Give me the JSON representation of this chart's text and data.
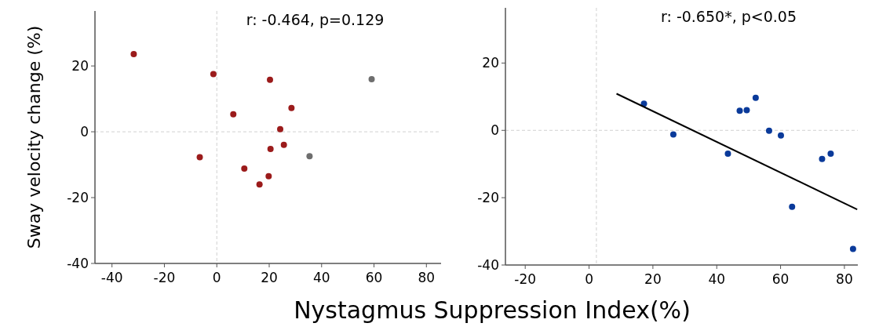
{
  "chart_data": [
    {
      "type": "scatter",
      "title": "r: -0.464, p=0.129",
      "ylabel": "Sway velocity change (%)",
      "xlabel": "Nystagmus Suppression Index(%)",
      "xlim": [
        -46.5,
        85.6
      ],
      "xticks": [
        -40,
        -20,
        0,
        20,
        40,
        60,
        80
      ],
      "ylim": [
        -40,
        36.7
      ],
      "yticks": [
        -40,
        -20,
        0,
        20
      ],
      "grid": false,
      "marker": "circle",
      "ref_lines": [
        {
          "axis": "x",
          "value": 0,
          "color": "#d0d0d0",
          "line_style": "dashed"
        },
        {
          "axis": "y",
          "value": 0,
          "color": "#d0d0d0",
          "line_style": "dashed"
        }
      ],
      "series": [
        {
          "color": "#9b1b1b",
          "x": [
            -31.7,
            -1.3,
            20.3,
            6.3,
            28.5,
            24.2,
            25.6,
            20.5,
            -6.5,
            10.5,
            19.8,
            16.3
          ],
          "values": [
            23.6,
            17.5,
            15.8,
            5.3,
            7.2,
            0.8,
            -4.0,
            -5.2,
            -7.7,
            -11.2,
            -13.5,
            -16.0
          ]
        },
        {
          "color": "#6e6e6e",
          "x": [
            59.1,
            35.4
          ],
          "values": [
            16.0,
            -7.4
          ]
        }
      ]
    },
    {
      "type": "scatter",
      "title": "r: -0.650*, p<0.05",
      "xlim": [
        -26.2,
        84.2
      ],
      "xticks": [
        -20,
        0,
        20,
        40,
        60,
        80
      ],
      "ylim": [
        -40,
        36.4
      ],
      "yticks": [
        -40,
        -20,
        0,
        20
      ],
      "grid": false,
      "marker": "circle",
      "ref_lines": [
        {
          "axis": "x",
          "value": 2.3,
          "color": "#d0d0d0",
          "line_style": "dashed"
        },
        {
          "axis": "y",
          "value": 0,
          "color": "#d0d0d0",
          "line_style": "dashed"
        }
      ],
      "series": [
        {
          "color": "#0a3a9a",
          "x": [
            17.2,
            26.4,
            43.5,
            47.2,
            49.4,
            52.2,
            56.4,
            60.1,
            63.6,
            73.0,
            75.7,
            82.7
          ],
          "values": [
            7.9,
            -1.2,
            -6.9,
            5.8,
            6.0,
            9.7,
            -0.1,
            -1.5,
            -22.7,
            -8.5,
            -6.9,
            -35.2
          ]
        },
        {
          "type": "line",
          "color": "#000000",
          "x": [
            8.6,
            84.0
          ],
          "values": [
            10.9,
            -23.5
          ],
          "marker": "none",
          "line_style": "solid"
        }
      ]
    }
  ]
}
